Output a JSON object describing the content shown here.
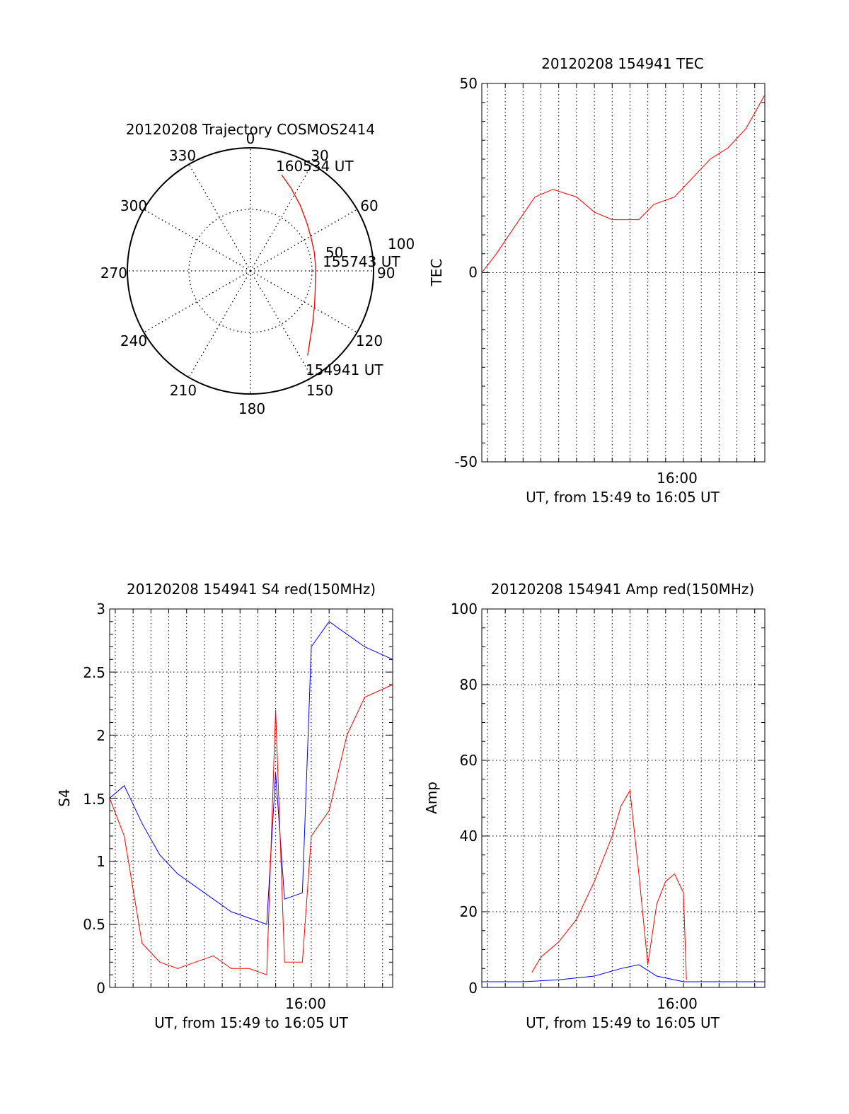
{
  "colors": {
    "red": "#ff0000",
    "blue": "#0000ff",
    "axis": "#000000",
    "grid": "#000000"
  },
  "chart_data": [
    {
      "type": "polar",
      "title": "20120208 Trajectory COSMOS2414",
      "angle_labels": [
        "0",
        "30",
        "60",
        "90",
        "120",
        "150",
        "180",
        "210",
        "240",
        "270",
        "300",
        "330"
      ],
      "radial_labels": [
        "50",
        "100"
      ],
      "rlim": [
        0,
        100
      ],
      "grid": true,
      "series": [
        {
          "color": "red",
          "points": [
            {
              "az": 18,
              "r": 82
            },
            {
              "az": 26,
              "r": 75
            },
            {
              "az": 37,
              "r": 67
            },
            {
              "az": 50,
              "r": 60
            },
            {
              "az": 62,
              "r": 56
            },
            {
              "az": 74,
              "r": 54
            },
            {
              "az": 85,
              "r": 53
            },
            {
              "az": 96,
              "r": 53
            },
            {
              "az": 107,
              "r": 55
            },
            {
              "az": 118,
              "r": 59
            },
            {
              "az": 130,
              "r": 66
            },
            {
              "az": 140,
              "r": 75
            },
            {
              "az": 146,
              "r": 83
            }
          ]
        }
      ],
      "annotations": [
        "160534 UT",
        "155743 UT",
        "154941 UT"
      ]
    },
    {
      "type": "line",
      "title": "20120208 154941 TEC",
      "xlabel": "UT, from 15:49 to 16:05 UT",
      "ylabel": "TEC",
      "x_range": [
        "15:49:41",
        "16:05:34"
      ],
      "x_tick_labels": [
        "16:00"
      ],
      "ylim": [
        -50,
        50
      ],
      "y_tick_labels": [
        "-50",
        "0",
        "50"
      ],
      "grid": true,
      "series": [
        {
          "color": "red",
          "x": [
            "15:49:41",
            "15:50:30",
            "15:51:30",
            "15:52:40",
            "15:53:40",
            "15:55:00",
            "15:56:00",
            "15:57:00",
            "15:58:30",
            "15:59:20",
            "16:00:30",
            "16:01:30",
            "16:02:30",
            "16:03:30",
            "16:04:30",
            "16:05:34"
          ],
          "y": [
            0,
            5,
            12,
            20,
            22,
            20,
            16,
            14,
            14,
            18,
            20,
            25,
            30,
            33,
            38,
            47
          ]
        }
      ]
    },
    {
      "type": "line",
      "title": "20120208 154941 S4 red(150MHz)",
      "xlabel": "UT, from 15:49 to 16:05 UT",
      "ylabel": "S4",
      "x_range": [
        "15:49:41",
        "16:05:34"
      ],
      "x_tick_labels": [
        "16:00"
      ],
      "ylim": [
        0,
        3
      ],
      "y_tick_labels": [
        "0",
        "0.5",
        "1",
        "1.5",
        "2",
        "2.5",
        "3"
      ],
      "grid": true,
      "series": [
        {
          "color": "blue",
          "x": [
            "15:49:41",
            "15:50:30",
            "15:51:30",
            "15:52:30",
            "15:53:30",
            "15:54:30",
            "15:55:30",
            "15:56:30",
            "15:57:30",
            "15:58:30",
            "15:59:00",
            "15:59:30",
            "16:00:30",
            "16:01:00",
            "16:02:00",
            "16:03:00",
            "16:04:00",
            "16:05:34"
          ],
          "y": [
            1.5,
            1.6,
            1.3,
            1.05,
            0.9,
            0.8,
            0.7,
            0.6,
            0.55,
            0.5,
            1.7,
            0.7,
            0.75,
            2.7,
            2.9,
            2.8,
            2.7,
            2.6
          ]
        },
        {
          "color": "red",
          "x": [
            "15:49:41",
            "15:50:30",
            "15:51:30",
            "15:52:30",
            "15:53:30",
            "15:54:30",
            "15:55:30",
            "15:56:30",
            "15:57:30",
            "15:58:30",
            "15:59:00",
            "15:59:30",
            "16:00:30",
            "16:01:00",
            "16:02:00",
            "16:03:00",
            "16:04:00",
            "16:05:34"
          ],
          "y": [
            1.5,
            1.2,
            0.35,
            0.2,
            0.15,
            0.2,
            0.25,
            0.15,
            0.15,
            0.1,
            2.2,
            0.2,
            0.2,
            1.2,
            1.4,
            2.0,
            2.3,
            2.4
          ]
        }
      ]
    },
    {
      "type": "line",
      "title": "20120208 154941 Amp red(150MHz)",
      "xlabel": "UT, from 15:49 to 16:05 UT",
      "ylabel": "Amp",
      "x_range": [
        "15:49:41",
        "16:05:34"
      ],
      "x_tick_labels": [
        "16:00"
      ],
      "ylim": [
        0,
        100
      ],
      "y_tick_labels": [
        "0",
        "20",
        "40",
        "60",
        "80",
        "100"
      ],
      "grid": true,
      "series": [
        {
          "color": "blue",
          "x": [
            "15:49:41",
            "15:52:00",
            "15:54:00",
            "15:56:00",
            "15:57:30",
            "15:58:30",
            "15:59:30",
            "16:01:00",
            "16:03:00",
            "16:05:34"
          ],
          "y": [
            1.5,
            1.5,
            2,
            3,
            5,
            6,
            3,
            1.5,
            1.5,
            1.5
          ]
        },
        {
          "color": "red",
          "x": [
            "15:52:30",
            "15:53:00",
            "15:54:00",
            "15:55:00",
            "15:56:00",
            "15:57:00",
            "15:57:30",
            "15:58:00",
            "15:58:30",
            "15:59:00",
            "15:59:30",
            "16:00:00",
            "16:00:30",
            "16:01:00",
            "16:01:10"
          ],
          "y": [
            4,
            8,
            12,
            18,
            28,
            40,
            48,
            52,
            30,
            6,
            22,
            28,
            30,
            25,
            2
          ]
        }
      ]
    }
  ]
}
